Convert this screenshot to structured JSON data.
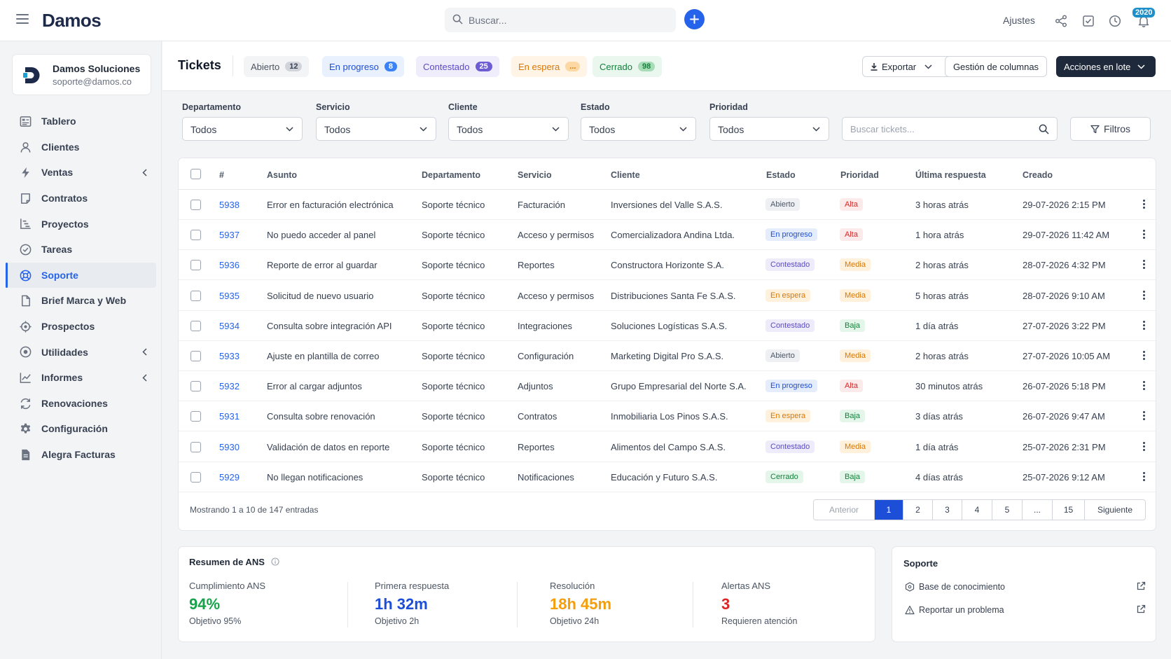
{
  "app": {
    "logo": "Damos"
  },
  "topbar": {
    "search_placeholder": "Buscar...",
    "settings_label": "Ajustes",
    "notification_count": "2020"
  },
  "company": {
    "name": "Damos Soluciones",
    "email": "soporte@damos.co"
  },
  "sidebar": {
    "items": [
      {
        "label": "Tablero",
        "icon": "dashboard-icon"
      },
      {
        "label": "Clientes",
        "icon": "user-icon"
      },
      {
        "label": "Ventas",
        "icon": "bolt-icon",
        "has_children": true
      },
      {
        "label": "Contratos",
        "icon": "document-icon"
      },
      {
        "label": "Proyectos",
        "icon": "project-icon"
      },
      {
        "label": "Tareas",
        "icon": "check-circle-icon"
      },
      {
        "label": "Soporte",
        "icon": "lifebuoy-icon",
        "active": true
      },
      {
        "label": "Brief Marca y Web",
        "icon": "file-icon"
      },
      {
        "label": "Prospectos",
        "icon": "target-icon"
      },
      {
        "label": "Utilidades",
        "icon": "circle-dot-icon",
        "has_children": true
      },
      {
        "label": "Informes",
        "icon": "chart-line-icon",
        "has_children": true
      },
      {
        "label": "Renovaciones",
        "icon": "refresh-icon"
      },
      {
        "label": "Configuración",
        "icon": "gear-icon"
      },
      {
        "label": "Alegra Facturas",
        "icon": "invoice-icon"
      }
    ]
  },
  "header": {
    "title": "Tickets",
    "status_pills": [
      {
        "label": "Abierto",
        "count": "12",
        "color": "#4b5563",
        "bg": "#f3f4f6",
        "count_bg": "#d1d5db"
      },
      {
        "label": "En progreso",
        "count": "8",
        "color": "#1d4ed8",
        "bg": "#eaf1fe",
        "count_bg": "#3b82f6"
      },
      {
        "label": "Contestado",
        "count": "25",
        "color": "#5b4bc4",
        "bg": "#efedfc",
        "count_bg": "#6d5dd3"
      },
      {
        "label": "En espera",
        "count": "...",
        "color": "#d97706",
        "bg": "#fff4e5",
        "count_bg": "#fcd9a4"
      },
      {
        "label": "Cerrado",
        "count": "98",
        "color": "#15803d",
        "bg": "#eaf7ee",
        "count_bg": "#a7dcb6"
      }
    ],
    "export_label": "Exportar",
    "columns_label": "Gestión de columnas",
    "bulk_label": "Acciones en lote"
  },
  "filters": {
    "department": {
      "label": "Departamento",
      "value": "Todos"
    },
    "service": {
      "label": "Servicio",
      "value": "Todos"
    },
    "client": {
      "label": "Cliente",
      "value": "Todos"
    },
    "status": {
      "label": "Estado",
      "value": "Todos"
    },
    "priority": {
      "label": "Prioridad",
      "value": "Todos"
    },
    "search_placeholder": "Buscar tickets...",
    "filters_label": "Filtros"
  },
  "table": {
    "columns": [
      "#",
      "Asunto",
      "Departamento",
      "Servicio",
      "Cliente",
      "Estado",
      "Prioridad",
      "Última respuesta",
      "Creado"
    ],
    "rows": [
      {
        "id": "5938",
        "subject": "Error en facturación electrónica",
        "dept": "Soporte técnico",
        "service": "Facturación",
        "client": "Inversiones del Valle S.A.S.",
        "status": "Abierto",
        "priority": "Alta",
        "last": "3 horas atrás",
        "created": "29-07-2026 2:15 PM"
      },
      {
        "id": "5937",
        "subject": "No puedo acceder al panel",
        "dept": "Soporte técnico",
        "service": "Acceso y permisos",
        "client": "Comercializadora Andina Ltda.",
        "status": "En progreso",
        "priority": "Alta",
        "last": "1 hora atrás",
        "created": "29-07-2026 11:42 AM"
      },
      {
        "id": "5936",
        "subject": "Reporte de error al guardar",
        "dept": "Soporte técnico",
        "service": "Reportes",
        "client": "Constructora Horizonte S.A.",
        "status": "Contestado",
        "priority": "Media",
        "last": "2 horas atrás",
        "created": "28-07-2026 4:32 PM"
      },
      {
        "id": "5935",
        "subject": "Solicitud de nuevo usuario",
        "dept": "Soporte técnico",
        "service": "Acceso y permisos",
        "client": "Distribuciones Santa Fe S.A.S.",
        "status": "En espera",
        "priority": "Media",
        "last": "5 horas atrás",
        "created": "28-07-2026 9:10 AM"
      },
      {
        "id": "5934",
        "subject": "Consulta sobre integración API",
        "dept": "Soporte técnico",
        "service": "Integraciones",
        "client": "Soluciones Logísticas S.A.S.",
        "status": "Contestado",
        "priority": "Baja",
        "last": "1 día atrás",
        "created": "27-07-2026 3:22 PM"
      },
      {
        "id": "5933",
        "subject": "Ajuste en plantilla de correo",
        "dept": "Soporte técnico",
        "service": "Configuración",
        "client": "Marketing Digital Pro S.A.S.",
        "status": "Abierto",
        "priority": "Media",
        "last": "2 horas atrás",
        "created": "27-07-2026 10:05 AM"
      },
      {
        "id": "5932",
        "subject": "Error al cargar adjuntos",
        "dept": "Soporte técnico",
        "service": "Adjuntos",
        "client": "Grupo Empresarial del Norte S.A.",
        "status": "En progreso",
        "priority": "Alta",
        "last": "30 minutos atrás",
        "created": "26-07-2026 5:18 PM"
      },
      {
        "id": "5931",
        "subject": "Consulta sobre renovación",
        "dept": "Soporte técnico",
        "service": "Contratos",
        "client": "Inmobiliaria Los Pinos S.A.S.",
        "status": "En espera",
        "priority": "Baja",
        "last": "3 días atrás",
        "created": "26-07-2026 9:47 AM"
      },
      {
        "id": "5930",
        "subject": "Validación de datos en reporte",
        "dept": "Soporte técnico",
        "service": "Reportes",
        "client": "Alimentos del Campo S.A.S.",
        "status": "Contestado",
        "priority": "Media",
        "last": "1 día atrás",
        "created": "25-07-2026 2:31 PM"
      },
      {
        "id": "5929",
        "subject": "No llegan notificaciones",
        "dept": "Soporte técnico",
        "service": "Notificaciones",
        "client": "Educación y Futuro S.A.S.",
        "status": "Cerrado",
        "priority": "Baja",
        "last": "4 días atrás",
        "created": "25-07-2026 9:12 AM"
      }
    ],
    "status_styles": {
      "Abierto": {
        "color": "#4b5563",
        "bg": "#eef0f3"
      },
      "En progreso": {
        "color": "#1d4ed8",
        "bg": "#e5edfd"
      },
      "Contestado": {
        "color": "#5b4bc4",
        "bg": "#eeebfb"
      },
      "En espera": {
        "color": "#d97706",
        "bg": "#fff1dc"
      },
      "Cerrado": {
        "color": "#15803d",
        "bg": "#e4f5e9"
      }
    },
    "priority_styles": {
      "Alta": {
        "color": "#dc2626",
        "bg": "#fdeaea"
      },
      "Media": {
        "color": "#d97706",
        "bg": "#fff1dc"
      },
      "Baja": {
        "color": "#15803d",
        "bg": "#e4f5e9"
      }
    },
    "showing": "Mostrando 1 a 10 de 147 entradas",
    "pagination": {
      "prev": "Anterior",
      "pages": [
        "1",
        "2",
        "3",
        "4",
        "5",
        "...",
        "15"
      ],
      "next": "Siguiente",
      "current": "1"
    }
  },
  "ans": {
    "title": "Resumen de ANS",
    "metrics": [
      {
        "label": "Cumplimiento ANS",
        "value": "94%",
        "sub": "Objetivo 95%",
        "color": "#16a34a"
      },
      {
        "label": "Primera respuesta",
        "value": "1h 32m",
        "sub": "Objetivo 2h",
        "color": "#1d4ed8"
      },
      {
        "label": "Resolución",
        "value": "18h 45m",
        "sub": "Objetivo 24h",
        "color": "#f59e0b"
      },
      {
        "label": "Alertas ANS",
        "value": "3",
        "sub": "Requieren atención",
        "color": "#dc2626"
      }
    ]
  },
  "support": {
    "title": "Soporte",
    "links": [
      {
        "label": "Base de conocimiento",
        "icon": "book-icon"
      },
      {
        "label": "Reportar un problema",
        "icon": "warning-icon"
      }
    ]
  }
}
